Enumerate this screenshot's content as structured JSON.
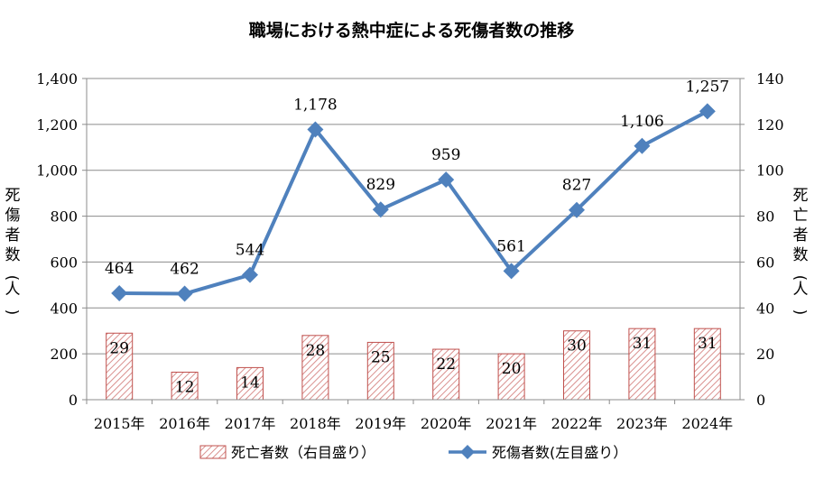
{
  "chart_data": {
    "type": "bar+line",
    "title": "職場における熱中症による死傷者数の推移",
    "categories": [
      "2015年",
      "2016年",
      "2017年",
      "2018年",
      "2019年",
      "2020年",
      "2021年",
      "2022年",
      "2023年",
      "2024年"
    ],
    "series": [
      {
        "name": "死亡者数（右目盛り）",
        "type": "bar",
        "axis": "right",
        "values": [
          29,
          12,
          14,
          28,
          25,
          22,
          20,
          30,
          31,
          31
        ],
        "labels": [
          "29",
          "12",
          "14",
          "28",
          "25",
          "22",
          "20",
          "30",
          "31",
          "31"
        ],
        "color": "#c0504d"
      },
      {
        "name": "死傷者数(左目盛り）",
        "type": "line",
        "axis": "left",
        "values": [
          464,
          462,
          544,
          1178,
          829,
          959,
          561,
          827,
          1106,
          1257
        ],
        "labels": [
          "464",
          "462",
          "544",
          "1,178",
          "829",
          "959",
          "561",
          "827",
          "1,106",
          "1,257"
        ],
        "color": "#4f81bd"
      }
    ],
    "y_left": {
      "label": "死傷者数(人)",
      "range": [
        0,
        1400
      ],
      "ticks": [
        0,
        200,
        400,
        600,
        800,
        1000,
        1200,
        1400
      ],
      "tick_labels": [
        "0",
        "200",
        "400",
        "600",
        "800",
        "1,000",
        "1,200",
        "1,400"
      ]
    },
    "y_right": {
      "label": "死亡者数(人)",
      "range": [
        0,
        140
      ],
      "ticks": [
        0,
        20,
        40,
        60,
        80,
        100,
        120,
        140
      ],
      "tick_labels": [
        "0",
        "20",
        "40",
        "60",
        "80",
        "100",
        "120",
        "140"
      ]
    },
    "grid": "horizontal",
    "legend_position": "bottom"
  }
}
